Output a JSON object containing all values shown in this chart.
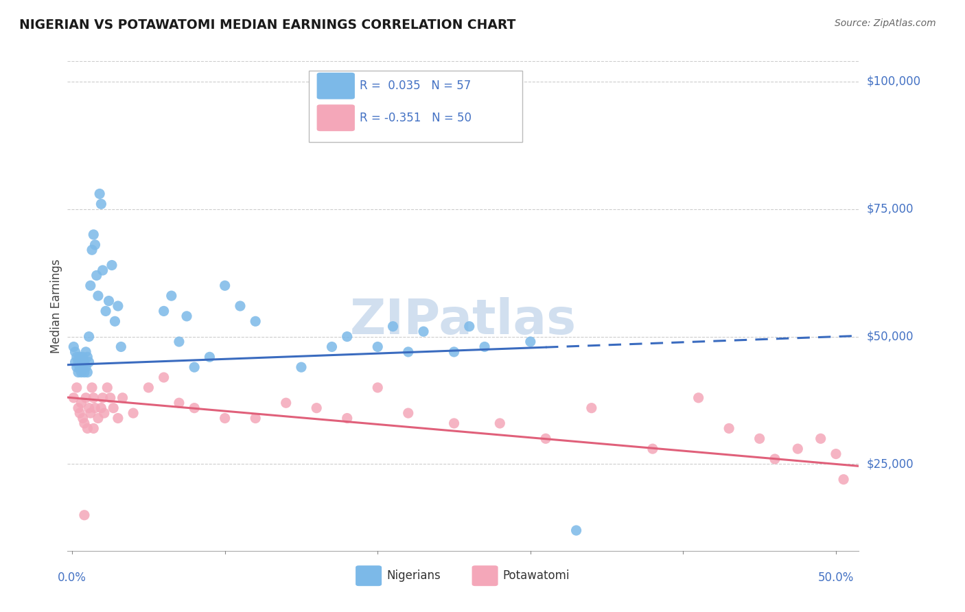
{
  "title": "NIGERIAN VS POTAWATOMI MEDIAN EARNINGS CORRELATION CHART",
  "source": "Source: ZipAtlas.com",
  "ylabel": "Median Earnings",
  "ytick_labels": [
    "$25,000",
    "$50,000",
    "$75,000",
    "$100,000"
  ],
  "ytick_values": [
    25000,
    50000,
    75000,
    100000
  ],
  "ymin": 8000,
  "ymax": 104000,
  "xmin": -0.003,
  "xmax": 0.515,
  "r_nigerian": 0.035,
  "n_nigerian": 57,
  "r_potawatomi": -0.351,
  "n_potawatomi": 50,
  "color_nigerian": "#7cb9e8",
  "color_potawatomi": "#f4a7b9",
  "color_nigerian_line": "#3a6bbf",
  "color_potawatomi_line": "#e0607a",
  "color_blue_text": "#4472c4",
  "watermark_color": "#ccdcee",
  "nigerian_x": [
    0.001,
    0.002,
    0.002,
    0.003,
    0.003,
    0.004,
    0.004,
    0.005,
    0.005,
    0.006,
    0.006,
    0.007,
    0.007,
    0.008,
    0.008,
    0.009,
    0.009,
    0.01,
    0.01,
    0.011,
    0.011,
    0.012,
    0.013,
    0.014,
    0.015,
    0.016,
    0.017,
    0.018,
    0.019,
    0.02,
    0.022,
    0.024,
    0.026,
    0.028,
    0.03,
    0.032,
    0.06,
    0.065,
    0.07,
    0.075,
    0.08,
    0.09,
    0.1,
    0.11,
    0.12,
    0.15,
    0.17,
    0.18,
    0.2,
    0.21,
    0.22,
    0.23,
    0.25,
    0.26,
    0.27,
    0.3,
    0.33
  ],
  "nigerian_y": [
    48000,
    47000,
    45000,
    46000,
    44000,
    43000,
    45000,
    44000,
    46000,
    43000,
    45000,
    44000,
    46000,
    43000,
    45000,
    47000,
    44000,
    46000,
    43000,
    45000,
    50000,
    60000,
    67000,
    70000,
    68000,
    62000,
    58000,
    78000,
    76000,
    63000,
    55000,
    57000,
    64000,
    53000,
    56000,
    48000,
    55000,
    58000,
    49000,
    54000,
    44000,
    46000,
    60000,
    56000,
    53000,
    44000,
    48000,
    50000,
    48000,
    52000,
    47000,
    51000,
    47000,
    52000,
    48000,
    49000,
    12000
  ],
  "potawatomi_x": [
    0.001,
    0.003,
    0.004,
    0.005,
    0.006,
    0.007,
    0.008,
    0.009,
    0.01,
    0.011,
    0.012,
    0.013,
    0.014,
    0.015,
    0.017,
    0.019,
    0.021,
    0.023,
    0.025,
    0.027,
    0.03,
    0.033,
    0.04,
    0.05,
    0.06,
    0.07,
    0.08,
    0.1,
    0.12,
    0.14,
    0.16,
    0.18,
    0.2,
    0.22,
    0.25,
    0.28,
    0.31,
    0.34,
    0.38,
    0.41,
    0.43,
    0.45,
    0.46,
    0.475,
    0.49,
    0.5,
    0.505,
    0.008,
    0.014,
    0.02
  ],
  "potawatomi_y": [
    38000,
    40000,
    36000,
    35000,
    37000,
    34000,
    33000,
    38000,
    32000,
    36000,
    35000,
    40000,
    38000,
    36000,
    34000,
    36000,
    35000,
    40000,
    38000,
    36000,
    34000,
    38000,
    35000,
    40000,
    42000,
    37000,
    36000,
    34000,
    34000,
    37000,
    36000,
    34000,
    40000,
    35000,
    33000,
    33000,
    30000,
    36000,
    28000,
    38000,
    32000,
    30000,
    26000,
    28000,
    30000,
    27000,
    22000,
    15000,
    32000,
    38000
  ]
}
